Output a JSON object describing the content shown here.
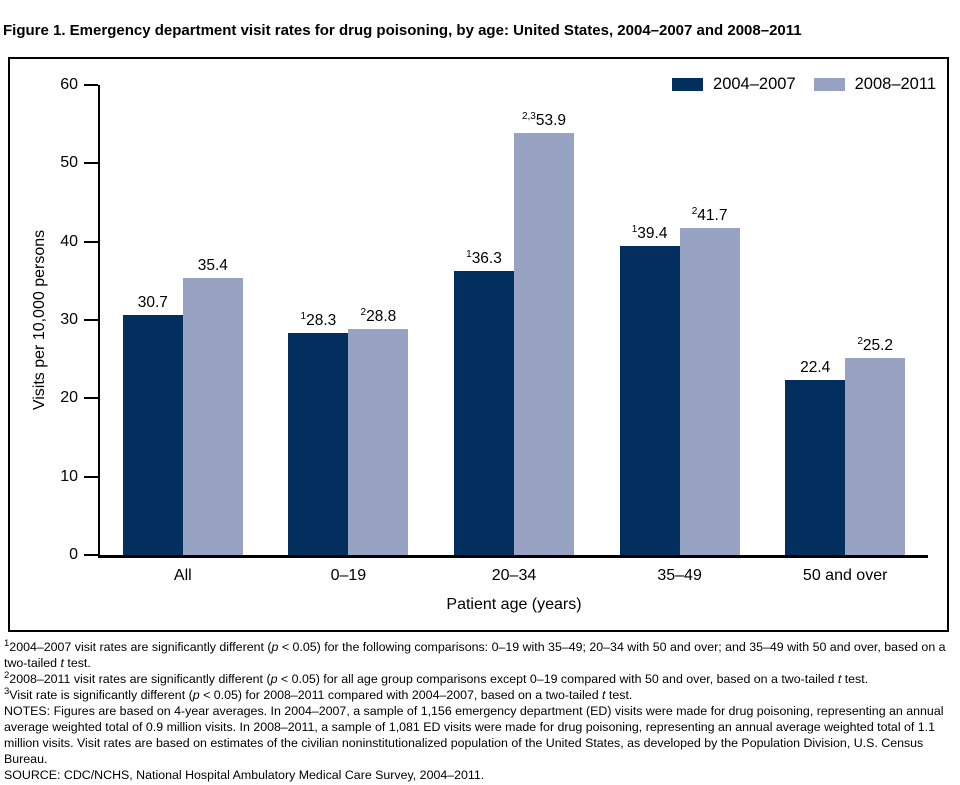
{
  "title": "Figure 1. Emergency department visit rates for drug poisoning, by age: United States, 2004–2007 and 2008–2011",
  "chart_data": {
    "type": "bar",
    "title": "Figure 1. Emergency department visit rates for drug poisoning, by age: United States, 2004–2007 and 2008–2011",
    "categories": [
      "All",
      "0–19",
      "20–34",
      "35–49",
      "50 and over"
    ],
    "series": [
      {
        "name": "2004–2007",
        "color": "#022f5e",
        "values": [
          30.7,
          28.3,
          36.3,
          39.4,
          22.4
        ],
        "superscripts": [
          "",
          "1",
          "1",
          "1",
          ""
        ]
      },
      {
        "name": "2008–2011",
        "color": "#98a3c4",
        "values": [
          35.4,
          28.8,
          53.9,
          41.7,
          25.2
        ],
        "superscripts": [
          "",
          "2",
          "2,3",
          "2",
          "2"
        ]
      }
    ],
    "xlabel": "Patient age (years)",
    "ylabel": "Visits per 10,000 persons",
    "ylim": [
      0,
      60
    ],
    "ytick_step": 10,
    "legend_position": "top-right",
    "grid": false
  },
  "footnotes": [
    {
      "sup": "1",
      "text": "2004–2007 visit rates are significantly different (*p* < 0.05) for the following comparisons: 0–19 with 35–49; 20–34 with 50 and over; and 35–49 with 50 and over, based on a two-tailed *t* test."
    },
    {
      "sup": "2",
      "text": "2008–2011 visit rates are significantly different (*p* < 0.05) for all age group comparisons except 0–19 compared with 50 and over, based on a two-tailed *t* test."
    },
    {
      "sup": "3",
      "text": "Visit rate is significantly different (*p* < 0.05) for 2008–2011 compared with 2004–2007, based on a two-tailed *t* test."
    },
    {
      "sup": "",
      "text": "NOTES: Figures are based on 4-year averages. In 2004–2007, a sample of 1,156 emergency department (ED) visits were made for drug poisoning, representing an annual average weighted total of 0.9 million visits. In 2008–2011, a sample of 1,081 ED visits were made for drug poisoning, representing an annual average weighted total of 1.1 million visits. Visit rates are based on estimates of the civilian noninstitutionalized population of the United States, as developed by the Population Division, U.S. Census Bureau."
    },
    {
      "sup": "",
      "text": "SOURCE: CDC/NCHS, National Hospital Ambulatory Medical Care Survey, 2004–2011."
    }
  ]
}
